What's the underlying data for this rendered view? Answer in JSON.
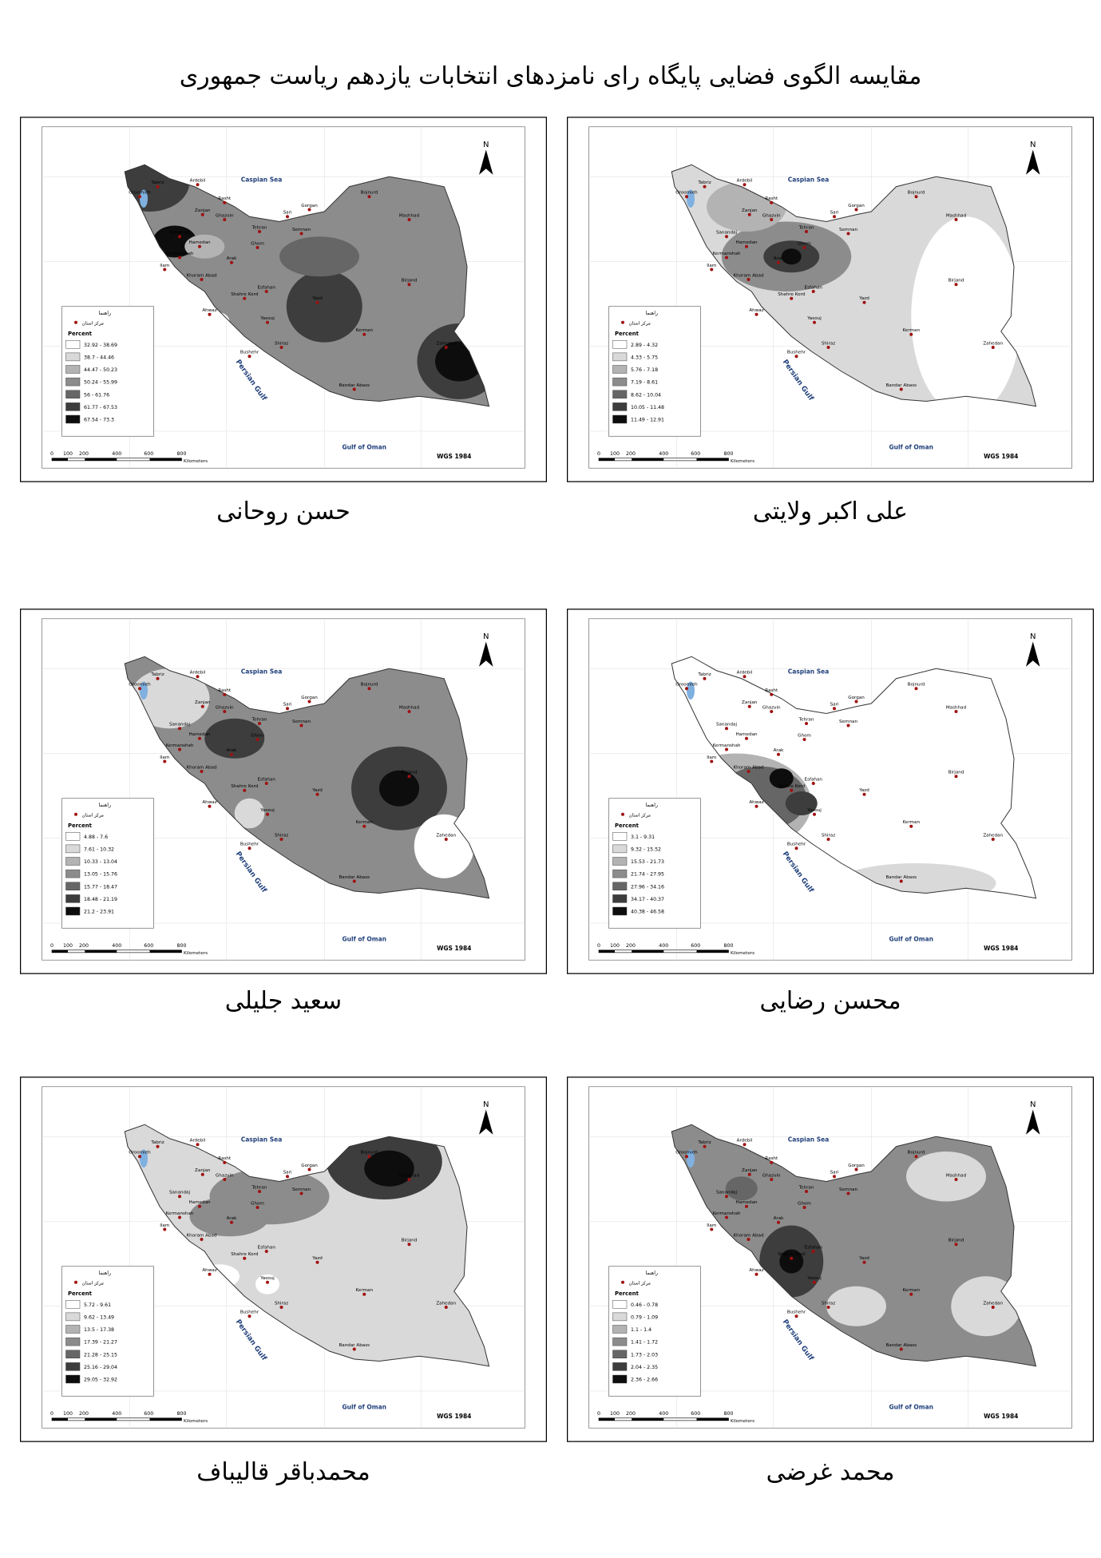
{
  "title": "مقایسه الگوی فضایی پایگاه رای نامزدهای انتخابات یازدهم ریاست جمهوری",
  "legend_title": "راهنما",
  "legend_marker": "مرکز استان",
  "legend_heading": "Percent",
  "north": "N",
  "datum": "WGS 1984",
  "seas": [
    "Caspian Sea",
    "Persian Gulf",
    "Gulf of Oman"
  ],
  "cities": [
    "Tabriz",
    "Ardebil",
    "Oroomieh",
    "Rasht",
    "Zanjan",
    "Ghazvin",
    "Sari",
    "Gorgan",
    "Bojnurd",
    "Mashhad",
    "Tehran",
    "Semnan",
    "Sanandaj",
    "Hamedan",
    "Ghom",
    "Kermanshah",
    "Arak",
    "Ilam",
    "Khoram Abad",
    "Esfahan",
    "Shahre Kord",
    "Birjand",
    "Yazd",
    "Ahwaz",
    "Yasouj",
    "Kerman",
    "Zahedan",
    "Shiraz",
    "Bushehr",
    "Bandar Abass"
  ],
  "scale": {
    "labels": [
      "0",
      "100",
      "200",
      "400",
      "600",
      "800"
    ],
    "unit": "Kilometers"
  },
  "class_colors": [
    "#ffffff",
    "#d9d9d9",
    "#b3b3b3",
    "#8c8c8c",
    "#666666",
    "#3d3d3d",
    "#0d0d0d"
  ],
  "maps": [
    {
      "candidate": "حسن روحانی",
      "classes": [
        "32.92 - 38.69",
        "38.7 - 44.46",
        "44.47 - 50.23",
        "50.24 - 55.99",
        "56 - 61.76",
        "61.77 - 67.53",
        "67.54 - 73.3"
      ]
    },
    {
      "candidate": "علی اکبر ولایتی",
      "classes": [
        "2.89 - 4.32",
        "4.33 - 5.75",
        "5.76 - 7.18",
        "7.19 - 8.61",
        "8.62 - 10.04",
        "10.05 - 11.48",
        "11.49 - 12.91"
      ]
    },
    {
      "candidate": "سعید جلیلی",
      "classes": [
        "4.88 - 7.6",
        "7.61 - 10.32",
        "10.33 - 13.04",
        "13.05 - 15.76",
        "15.77 - 18.47",
        "18.48 - 21.19",
        "21.2 - 23.91"
      ]
    },
    {
      "candidate": "محسن رضایی",
      "classes": [
        "3.1 - 9.31",
        "9.32 - 15.52",
        "15.53 - 21.73",
        "21.74 - 27.95",
        "27.96 - 34.16",
        "34.17 - 40.37",
        "40.38 - 46.58"
      ]
    },
    {
      "candidate": "محمدباقر قالیباف",
      "classes": [
        "5.72 - 9.61",
        "9.62 - 13.49",
        "13.5 - 17.38",
        "17.39 - 21.27",
        "21.28 - 25.15",
        "25.16 - 29.04",
        "29.05 - 32.92"
      ]
    },
    {
      "candidate": "محمد غرضی",
      "classes": [
        "0.46 - 0.78",
        "0.79 - 1.09",
        "1.1 - 1.4",
        "1.41 - 1.72",
        "1.73 - 2.03",
        "2.04 - 2.35",
        "2.36 - 2.66"
      ]
    }
  ]
}
